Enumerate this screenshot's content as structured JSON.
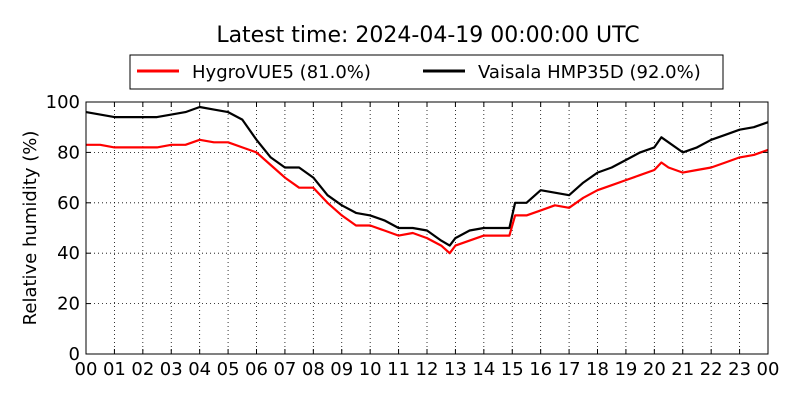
{
  "chart_data": {
    "type": "line",
    "title": "Latest time: 2024-04-19 00:00:00 UTC",
    "xlabel": "",
    "ylabel": "Relative humidity (%)",
    "xlim": [
      0,
      24
    ],
    "ylim": [
      0,
      100
    ],
    "grid": true,
    "legend_position": "top-center",
    "x_ticks": [
      "00",
      "01",
      "02",
      "03",
      "04",
      "05",
      "06",
      "07",
      "08",
      "09",
      "10",
      "11",
      "12",
      "13",
      "14",
      "15",
      "16",
      "17",
      "18",
      "19",
      "20",
      "21",
      "22",
      "23",
      "00"
    ],
    "y_ticks": [
      "0",
      "20",
      "40",
      "60",
      "80",
      "100"
    ],
    "x": [
      0,
      0.5,
      1,
      1.5,
      2,
      2.5,
      3,
      3.5,
      4,
      4.5,
      5,
      5.5,
      6,
      6.5,
      7,
      7.5,
      8,
      8.5,
      9,
      9.5,
      10,
      10.5,
      11,
      11.5,
      12,
      12.5,
      12.8,
      13,
      13.5,
      14,
      14.5,
      14.9,
      15.1,
      15.5,
      16,
      16.5,
      17,
      17.5,
      18,
      18.5,
      19,
      19.5,
      20,
      20.25,
      20.5,
      21,
      21.5,
      22,
      22.5,
      23,
      23.5,
      24
    ],
    "series": [
      {
        "name": "HygroVUE5 (81.0%)",
        "color": "#ff0000",
        "values": [
          83,
          83,
          82,
          82,
          82,
          82,
          83,
          83,
          85,
          84,
          84,
          82,
          80,
          75,
          70,
          66,
          66,
          60,
          55,
          51,
          51,
          49,
          47,
          48,
          46,
          43,
          40,
          43,
          45,
          47,
          47,
          47,
          55,
          55,
          57,
          59,
          58,
          62,
          65,
          67,
          69,
          71,
          73,
          76,
          74,
          72,
          73,
          74,
          76,
          78,
          79,
          81
        ]
      },
      {
        "name": "Vaisala HMP35D (92.0%)",
        "color": "#000000",
        "values": [
          96,
          95,
          94,
          94,
          94,
          94,
          95,
          96,
          98,
          97,
          96,
          93,
          85,
          78,
          74,
          74,
          70,
          63,
          59,
          56,
          55,
          53,
          50,
          50,
          49,
          45,
          43,
          46,
          49,
          50,
          50,
          50,
          60,
          60,
          65,
          64,
          63,
          68,
          72,
          74,
          77,
          80,
          82,
          86,
          84,
          80,
          82,
          85,
          87,
          89,
          90,
          92
        ]
      }
    ]
  }
}
